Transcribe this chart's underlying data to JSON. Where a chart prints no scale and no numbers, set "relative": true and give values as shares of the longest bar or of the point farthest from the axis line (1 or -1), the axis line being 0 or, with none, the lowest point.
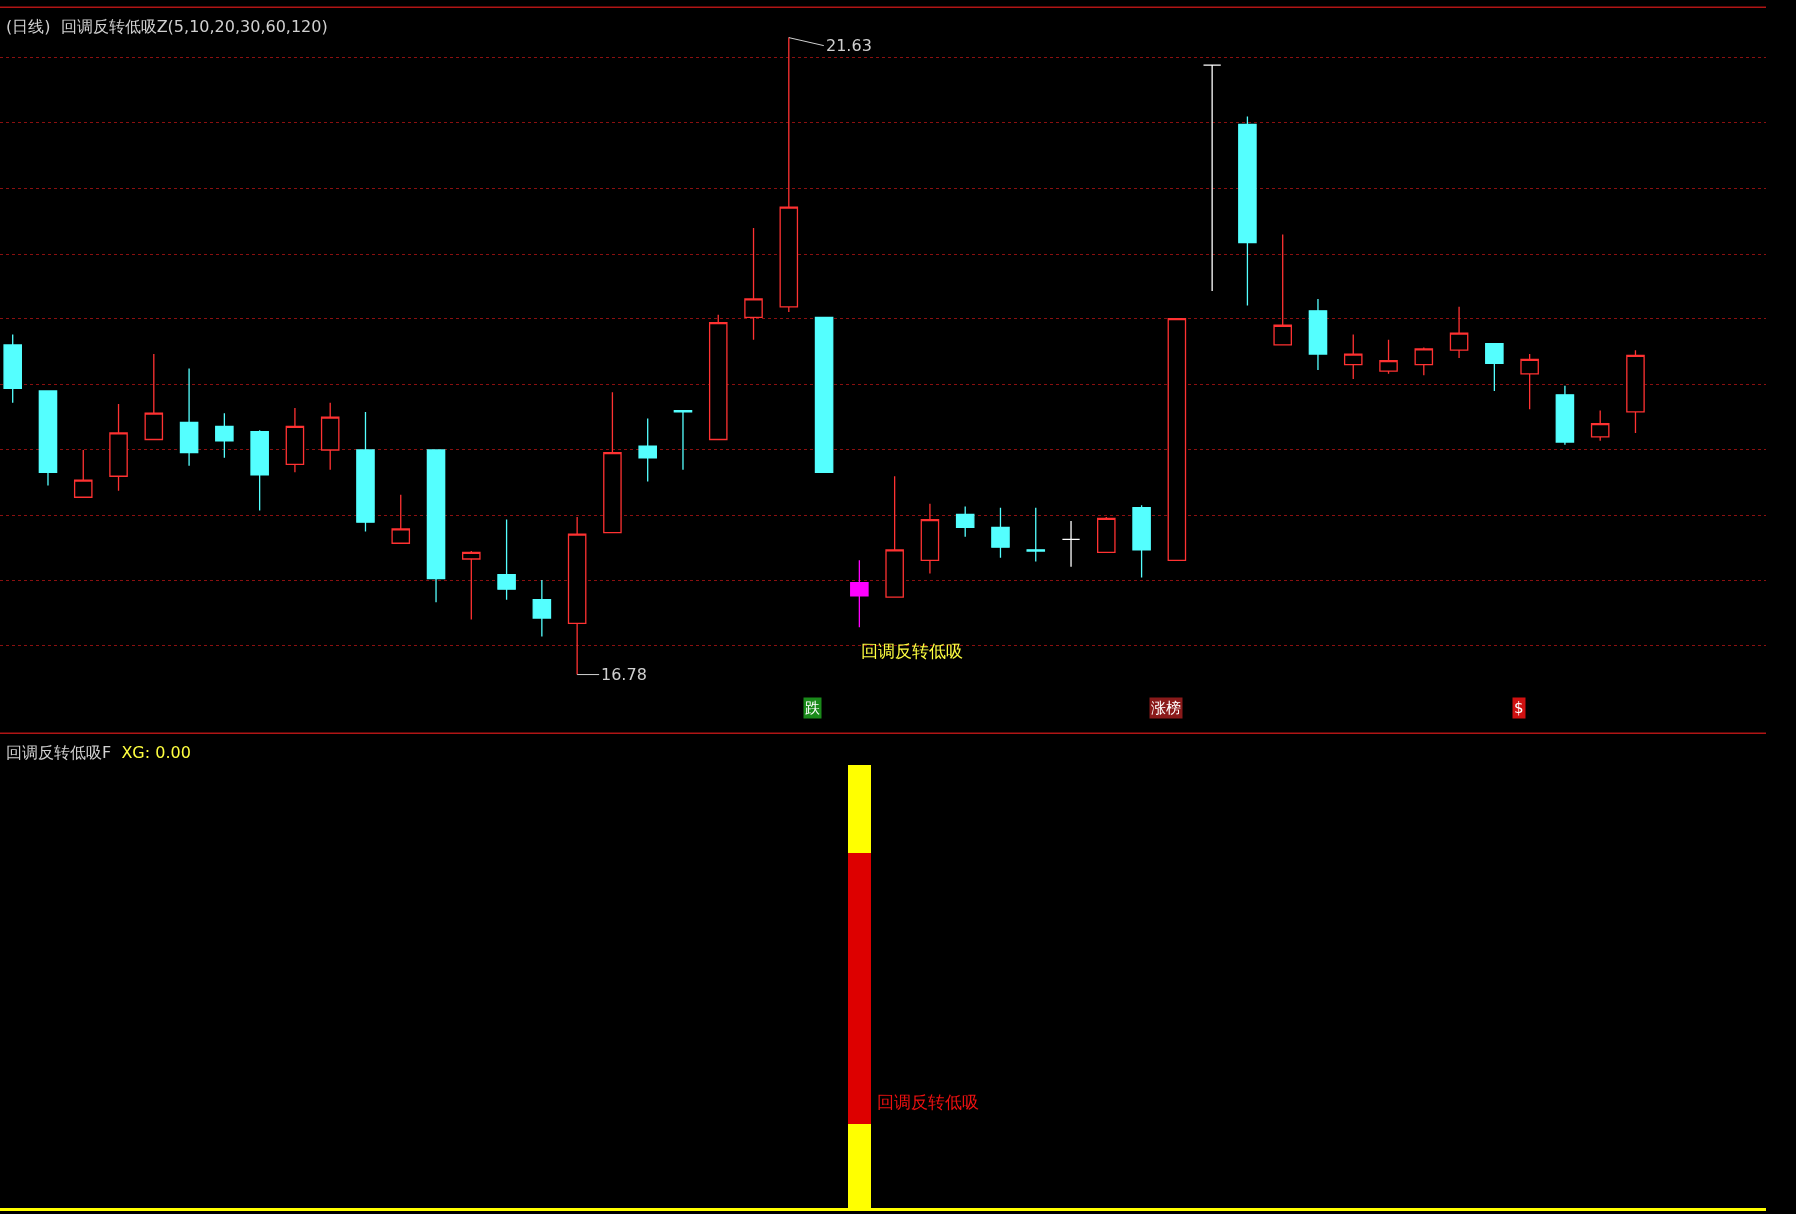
{
  "chart_data": [
    {
      "type": "candlestick",
      "title": "(日线)",
      "subtitle": "回调反转低吸Z(5,10,20,30,60,120)",
      "categories": [
        null,
        null,
        null,
        null,
        null,
        null,
        null,
        null,
        null,
        null,
        null,
        null,
        null,
        null,
        null,
        null,
        null,
        null,
        null,
        null,
        null,
        null,
        null,
        null,
        null,
        null,
        null,
        null,
        null,
        null,
        null,
        null,
        null,
        null,
        null,
        null,
        null,
        null,
        null,
        null,
        null,
        null,
        null,
        null,
        null,
        null,
        null
      ],
      "ohlc": [
        [
          19.29,
          19.37,
          18.85,
          18.96
        ],
        [
          18.94,
          18.94,
          18.22,
          18.32
        ],
        [
          18.13,
          18.49,
          18.13,
          18.26
        ],
        [
          18.29,
          18.84,
          18.18,
          18.62
        ],
        [
          18.57,
          19.22,
          18.57,
          18.77
        ],
        [
          18.7,
          19.11,
          18.37,
          18.47
        ],
        [
          18.67,
          18.77,
          18.43,
          18.56
        ],
        [
          18.63,
          18.64,
          18.03,
          18.3
        ],
        [
          18.38,
          18.81,
          18.32,
          18.67
        ],
        [
          18.49,
          18.85,
          18.34,
          18.74
        ],
        [
          18.49,
          18.78,
          17.87,
          17.94
        ],
        [
          17.78,
          18.15,
          17.78,
          17.89
        ],
        [
          18.49,
          18.49,
          17.33,
          17.51
        ],
        [
          17.66,
          17.72,
          17.2,
          17.71
        ],
        [
          17.54,
          17.96,
          17.35,
          17.43
        ],
        [
          17.35,
          17.5,
          17.07,
          17.21
        ],
        [
          17.17,
          17.98,
          16.78,
          17.85
        ],
        [
          17.86,
          18.93,
          17.86,
          18.47
        ],
        [
          18.52,
          18.73,
          18.25,
          18.43
        ],
        [
          18.79,
          18.79,
          18.34,
          18.78
        ],
        [
          18.57,
          19.52,
          18.57,
          19.46
        ],
        [
          19.5,
          20.18,
          19.33,
          19.64
        ],
        [
          19.58,
          21.63,
          19.54,
          20.34
        ],
        [
          19.5,
          19.5,
          18.32,
          18.32
        ],
        [
          17.48,
          17.65,
          17.14,
          17.38
        ],
        [
          17.37,
          18.29,
          17.37,
          17.73
        ],
        [
          17.65,
          18.08,
          17.55,
          17.96
        ],
        [
          18.0,
          18.06,
          17.83,
          17.9
        ],
        [
          17.9,
          18.05,
          17.67,
          17.75
        ],
        [
          17.73,
          18.05,
          17.64,
          17.72
        ],
        [
          17.81,
          17.95,
          17.6,
          17.81
        ],
        [
          17.71,
          17.98,
          17.71,
          17.97
        ],
        [
          18.05,
          18.07,
          17.52,
          17.73
        ],
        [
          17.65,
          19.49,
          17.65,
          19.49
        ],
        [
          21.42,
          21.42,
          19.7,
          21.42
        ],
        [
          20.97,
          21.03,
          19.59,
          20.07
        ],
        [
          19.29,
          20.13,
          19.29,
          19.44
        ],
        [
          19.55,
          19.64,
          19.1,
          19.22
        ],
        [
          19.14,
          19.37,
          19.03,
          19.22
        ],
        [
          19.09,
          19.33,
          19.07,
          19.17
        ],
        [
          19.14,
          19.27,
          19.06,
          19.26
        ],
        [
          19.25,
          19.58,
          19.19,
          19.38
        ],
        [
          19.3,
          19.3,
          18.94,
          19.15
        ],
        [
          19.07,
          19.22,
          18.8,
          19.18
        ],
        [
          18.91,
          18.98,
          18.53,
          18.55
        ],
        [
          18.59,
          18.79,
          18.56,
          18.69
        ],
        [
          18.78,
          19.25,
          18.62,
          19.21
        ]
      ],
      "colors": [
        "#54ffff",
        "#54ffff",
        "#ff3232",
        "#ff3232",
        "#ff3232",
        "#54ffff",
        "#54ffff",
        "#54ffff",
        "#ff3232",
        "#ff3232",
        "#54ffff",
        "#ff3232",
        "#54ffff",
        "#ff3232",
        "#54ffff",
        "#54ffff",
        "#ff3232",
        "#ff3232",
        "#54ffff",
        "#54ffff",
        "#ff3232",
        "#ff3232",
        "#ff3232",
        "#54ffff",
        "#ff00ff",
        "#ff3232",
        "#ff3232",
        "#54ffff",
        "#54ffff",
        "#54ffff",
        "#ffffff",
        "#ff3232",
        "#54ffff",
        "#ff3232",
        "#ffffff",
        "#54ffff",
        "#ff3232",
        "#54ffff",
        "#ff3232",
        "#ff3232",
        "#ff3232",
        "#ff3232",
        "#54ffff",
        "#ff3232",
        "#54ffff",
        "#ff3232",
        "#ff3232"
      ],
      "yticks": [
        {
          "value": 21.48,
          "label": null
        },
        {
          "value": 20.98,
          "label": null
        },
        {
          "value": 20.48,
          "label": null
        },
        {
          "value": 19.98,
          "label": null
        },
        {
          "value": 19.49,
          "label": null
        },
        {
          "value": 18.99,
          "label": null
        },
        {
          "value": 18.49,
          "label": null
        },
        {
          "value": 17.99,
          "label": null
        },
        {
          "value": 17.5,
          "label": null
        },
        {
          "value": 17.0,
          "label": null
        }
      ],
      "grid": "y",
      "annotations": [
        "21.63",
        "16.78",
        "回调反转低吸",
        "跌",
        "涨榜",
        "$"
      ]
    },
    {
      "type": "bar",
      "title": "回调反转低吸F",
      "stacked": true,
      "relative": true,
      "categories": [
        null,
        null,
        null,
        null,
        null,
        null,
        null,
        null,
        null,
        null,
        null,
        null,
        null,
        null,
        null,
        null,
        null,
        null,
        null,
        null,
        null,
        null,
        null,
        null,
        null,
        null,
        null,
        null,
        null,
        null,
        null,
        null,
        null,
        null,
        null,
        null,
        null,
        null,
        null,
        null,
        null,
        null,
        null,
        null,
        null,
        null,
        null
      ],
      "series": [
        {
          "color": "#ffff00",
          "values": [
            null,
            null,
            null,
            null,
            null,
            null,
            null,
            null,
            null,
            null,
            null,
            null,
            null,
            null,
            null,
            null,
            null,
            null,
            null,
            null,
            null,
            null,
            null,
            null,
            0.19,
            null,
            null,
            null,
            null,
            null,
            null,
            null,
            null,
            null,
            null,
            null,
            null,
            null,
            null,
            null,
            null,
            null,
            null,
            null,
            null,
            null,
            null
          ]
        },
        {
          "color": "#dd0000",
          "values": [
            null,
            null,
            null,
            null,
            null,
            null,
            null,
            null,
            null,
            null,
            null,
            null,
            null,
            null,
            null,
            null,
            null,
            null,
            null,
            null,
            null,
            null,
            null,
            null,
            0.61,
            null,
            null,
            null,
            null,
            null,
            null,
            null,
            null,
            null,
            null,
            null,
            null,
            null,
            null,
            null,
            null,
            null,
            null,
            null,
            null,
            null,
            null
          ]
        },
        {
          "color": "#ffff00",
          "values": [
            null,
            null,
            null,
            null,
            null,
            null,
            null,
            null,
            null,
            null,
            null,
            null,
            null,
            null,
            null,
            null,
            null,
            null,
            null,
            null,
            null,
            null,
            null,
            null,
            0.2,
            null,
            null,
            null,
            null,
            null,
            null,
            null,
            null,
            null,
            null,
            null,
            null,
            null,
            null,
            null,
            null,
            null,
            null,
            null,
            null,
            null,
            null
          ]
        }
      ],
      "annotations": [
        "XG: 0.00",
        "回调反转低吸"
      ]
    }
  ]
}
